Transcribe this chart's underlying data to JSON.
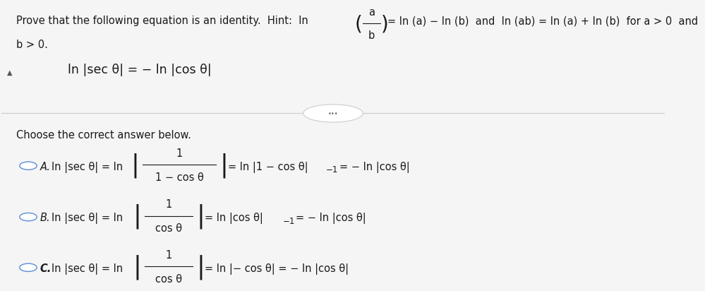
{
  "bg_color": "#f5f5f5",
  "text_color": "#1a1a1a",
  "circle_color": "#5b8dd9",
  "divider_color": "#cccccc",
  "fs_main": 10.5,
  "fs_eq": 12.5,
  "fs_small": 8.5,
  "title_part1": "Prove that the following equation is an identity.  Hint:  ln",
  "title_part2": "= ln (a) − ln (b)  and  ln (ab) = ln (a) + ln (b)  for a > 0  and",
  "title_line2": "b > 0.",
  "frac_top": "a",
  "frac_bot": "b",
  "equation": "ln |sec θ| = − ln |cos θ|",
  "choose_text": "Choose the correct answer below.",
  "optA_pre": "ln |sec θ| = ln",
  "optA_frac_top": "1",
  "optA_frac_bot": "1 − cos θ",
  "optA_post1": "= ln |1 − cos θ|",
  "optA_exp": "−1",
  "optA_post2": "= − ln |cos θ|",
  "optB_pre": "ln |sec θ| = ln",
  "optB_frac_top": "1",
  "optB_frac_bot": "cos θ",
  "optB_post1": "= ln |cos θ|",
  "optB_exp": "−1",
  "optB_post2": "= − ln |cos θ|",
  "optC_pre": "ln |sec θ| = ln",
  "optC_frac_top": "1",
  "optC_frac_bot": "cos θ",
  "optC_post": "= ln |− cos θ| = − ln |cos θ|"
}
